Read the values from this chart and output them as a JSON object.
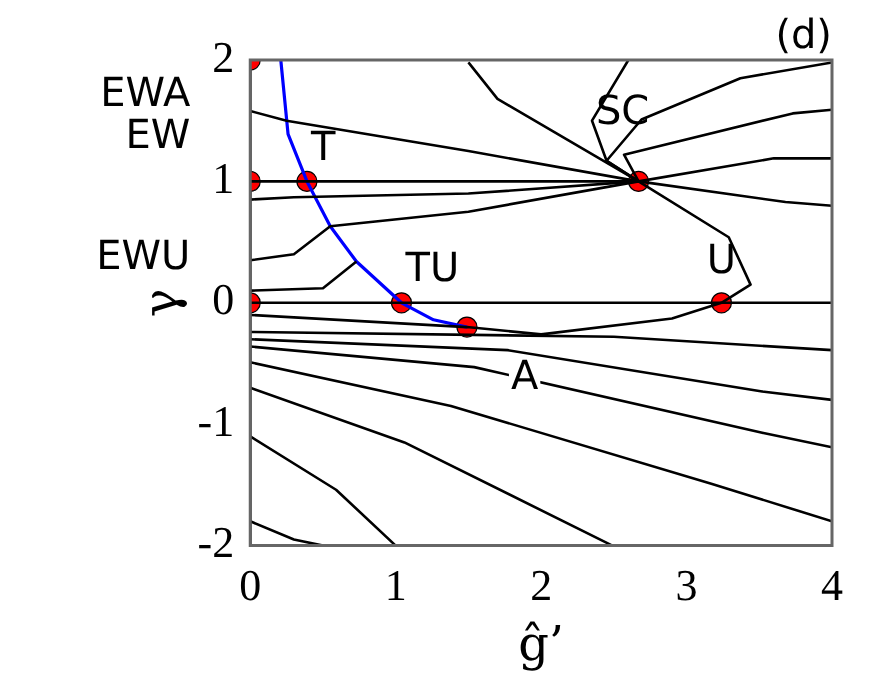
{
  "chart_data": {
    "type": "line",
    "xlabel": "ĝ’",
    "ylabel": "γ",
    "xlim": [
      0,
      4
    ],
    "ylim": [
      -2,
      2
    ],
    "xticks": [
      0,
      1,
      2,
      3,
      4
    ],
    "yticks": [
      -2,
      -1,
      0,
      1,
      2
    ],
    "grid": false,
    "legend": false,
    "line_style": "solid",
    "annotations": [
      "(d)",
      {
        "text": "EWA",
        "x": 0,
        "y": 2
      },
      {
        "text": "EW",
        "x": 0,
        "y": 1
      },
      {
        "text": "EWU",
        "x": 0,
        "y": 0
      },
      {
        "text": "T",
        "x": 0.39,
        "y": 1
      },
      {
        "text": "TU",
        "x": 1.04,
        "y": 0
      },
      {
        "text": "SC",
        "x": 2.67,
        "y": 1
      },
      {
        "text": "U",
        "x": 3.24,
        "y": 0
      },
      {
        "text": "A",
        "x": 1.49,
        "y": -0.2
      }
    ],
    "series": [
      {
        "type": "line",
        "color": "#000000",
        "x": [
          0,
          0.3,
          0.5
        ],
        "values": [
          -1.8,
          -1.95,
          -2
        ]
      },
      {
        "type": "line",
        "color": "#000000",
        "x": [
          0,
          0.59,
          1.0
        ],
        "values": [
          -1.1,
          -1.54,
          -2
        ]
      },
      {
        "type": "line",
        "color": "#000000",
        "x": [
          0,
          1.06,
          2.49
        ],
        "values": [
          -0.7,
          -1.15,
          -2
        ]
      },
      {
        "type": "line",
        "color": "#000000",
        "x": [
          0,
          1.38,
          3.17,
          4
        ],
        "values": [
          -0.49,
          -0.85,
          -1.49,
          -1.8
        ]
      },
      {
        "type": "line",
        "color": "#000000",
        "x": [
          0,
          1.54,
          3.52,
          4
        ],
        "values": [
          -0.36,
          -0.53,
          -1.07,
          -1.19
        ]
      },
      {
        "type": "line",
        "color": "#000000",
        "x": [
          0,
          1.77,
          3.52,
          4
        ],
        "values": [
          -0.3,
          -0.39,
          -0.73,
          -0.8
        ]
      },
      {
        "type": "line",
        "color": "#000000",
        "x": [
          0,
          2.5,
          4
        ],
        "values": [
          -0.24,
          -0.28,
          -0.39
        ]
      },
      {
        "type": "line",
        "color": "#000000",
        "x": [
          0,
          1.04,
          3.24,
          4
        ],
        "values": [
          0,
          0,
          0,
          0
        ]
      },
      {
        "type": "line",
        "color": "#000000",
        "x": [
          0,
          1.49,
          2.0,
          2.9,
          3.24
        ],
        "values": [
          -0.1,
          -0.2,
          -0.26,
          -0.13,
          0
        ]
      },
      {
        "type": "line",
        "color": "#000000",
        "x": [
          0,
          0.5,
          0.73
        ],
        "values": [
          0.1,
          0.12,
          0.34
        ]
      },
      {
        "type": "line",
        "color": "#000000",
        "x": [
          0,
          0.3,
          0.55,
          1.5,
          2.67
        ],
        "values": [
          0.35,
          0.4,
          0.63,
          0.75,
          1
        ]
      },
      {
        "type": "line",
        "color": "#000000",
        "x": [
          0,
          0.3,
          1.5,
          2.67
        ],
        "values": [
          0.85,
          0.87,
          0.9,
          1
        ]
      },
      {
        "type": "line",
        "color": "#000000",
        "x": [
          0,
          0.39,
          1.5,
          2.67
        ],
        "values": [
          1,
          1,
          1,
          1
        ]
      },
      {
        "type": "line",
        "color": "#000000",
        "x": [
          0,
          0.25,
          1.5,
          2.67
        ],
        "values": [
          1.58,
          1.5,
          1.25,
          1
        ]
      },
      {
        "type": "line",
        "color": "#000000",
        "x": [
          1.5,
          1.7,
          2.67
        ],
        "values": [
          1.98,
          1.68,
          1
        ]
      },
      {
        "type": "line",
        "color": "#000000",
        "x": [
          2.6,
          2.35,
          2.45,
          2.67
        ],
        "values": [
          2,
          1.5,
          1.17,
          1
        ]
      },
      {
        "type": "line",
        "color": "#000000",
        "x": [
          4,
          3.37,
          2.69,
          2.45,
          2.67
        ],
        "values": [
          1.98,
          1.85,
          1.51,
          1.17,
          1
        ]
      },
      {
        "type": "line",
        "color": "#000000",
        "x": [
          4,
          3.73,
          2.57,
          2.67
        ],
        "values": [
          1.59,
          1.56,
          1.22,
          1
        ]
      },
      {
        "type": "line",
        "color": "#000000",
        "x": [
          4,
          3.6,
          2.67
        ],
        "values": [
          1.19,
          1.19,
          1
        ]
      },
      {
        "type": "line",
        "color": "#000000",
        "x": [
          4,
          3.68,
          2.67
        ],
        "values": [
          0.8,
          0.83,
          1
        ]
      },
      {
        "type": "line",
        "color": "#000000",
        "x": [
          2.67,
          3.29,
          3.44,
          3.24
        ],
        "values": [
          1,
          0.54,
          0.15,
          0
        ]
      },
      {
        "color": "#0000ff",
        "x": [
          0.21,
          0.26,
          0.39,
          0.55,
          0.73,
          1.04,
          1.26,
          1.49
        ],
        "values": [
          2,
          1.39,
          1,
          0.63,
          0.34,
          0,
          -0.14,
          -0.2
        ]
      },
      {
        "type": "scatter",
        "color": "#ff0000",
        "marker": "circle",
        "x": [
          0,
          0,
          0,
          0.39,
          1.04,
          1.49,
          2.67,
          3.24
        ],
        "values": [
          2,
          1,
          0,
          1,
          0,
          -0.2,
          1,
          0
        ]
      }
    ]
  }
}
